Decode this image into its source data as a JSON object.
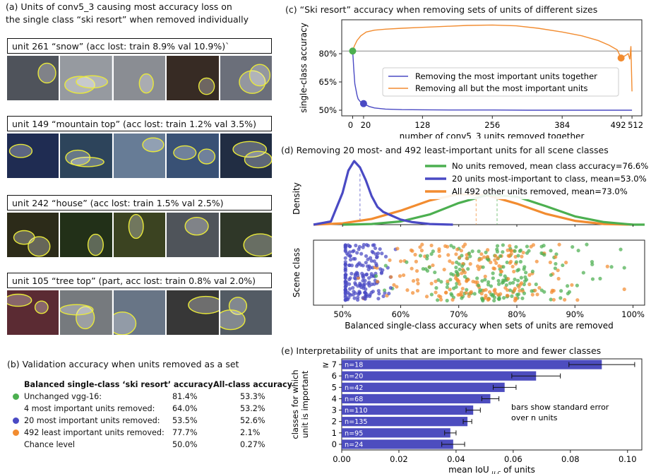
{
  "panel_a": {
    "title_line1": "(a) Units of conv5_3 causing most accuracy loss on",
    "title_line2": "the single class “ski resort” when removed individually",
    "units": [
      {
        "caption": "unit 261 “snow” (acc lost: train 8.9% val 10.9%)`",
        "palette": [
          "#6a6f7a",
          "#c9ced6",
          "#b8bcc4",
          "#4a3a30",
          "#8f95a3"
        ]
      },
      {
        "caption": "unit 149 “mountain top” (acc lost: train 1.2% val 3.5%)",
        "palette": [
          "#2a3b6e",
          "#3c5b7a",
          "#8aa6c8",
          "#4d6d9c",
          "#2c3d5a"
        ]
      },
      {
        "caption": "unit 242 “house” (acc lost: train 1.5% val 2.5%)",
        "palette": [
          "#3b3a22",
          "#2e4020",
          "#4f5a2c",
          "#6a7078",
          "#3f4a36"
        ]
      },
      {
        "caption": "unit 105 “tree top” (part, acc lost: train 0.8% val 2.0%)",
        "palette": [
          "#7a3a44",
          "#9ea3a8",
          "#8b9db3",
          "#4a4a4a",
          "#6f7a86"
        ]
      }
    ]
  },
  "panel_b": {
    "title": "(b) Validation accuracy when units removed as a set",
    "headers": [
      "Balanced single-class ‘ski resort’ accuracy",
      "All-class accuracy"
    ],
    "rows": [
      {
        "label": "Unchanged vgg-16:",
        "acc": "81.4%",
        "all": "53.3%",
        "dot": "#4caf50"
      },
      {
        "label": "4 most important units removed:",
        "acc": "64.0%",
        "all": "53.2%",
        "dot": ""
      },
      {
        "label": "20 most important units removed:",
        "acc": "53.5%",
        "all": "52.6%",
        "dot": "#4a4ac4"
      },
      {
        "label": "492 least important units removed:",
        "acc": "77.7%",
        "all": "2.1%",
        "dot": "#f28c30"
      },
      {
        "label": "Chance level",
        "acc": "50.0%",
        "all": "0.27%",
        "dot": ""
      }
    ]
  },
  "colors": {
    "green": "#4caf50",
    "blue": "#4a4ac4",
    "orange": "#f28c30",
    "bar": "#4d4dbf"
  },
  "chart_data": [
    {
      "id": "c",
      "type": "line",
      "title": "(c) “Ski resort” accuracy when removing sets of units of different sizes",
      "xlabel": "number of conv5_3 units removed together",
      "ylabel": "single-class accuracy",
      "xlim": [
        -20,
        530
      ],
      "ylim": [
        0.47,
        0.98
      ],
      "xticks": [
        0,
        20,
        128,
        256,
        384,
        492,
        512
      ],
      "xtick_labels": [
        "0",
        "20",
        "128",
        "256",
        "384",
        "492",
        "512"
      ],
      "yticks": [
        0.5,
        0.65,
        0.8
      ],
      "ytick_labels": [
        "50%",
        "65%",
        "80%"
      ],
      "hline": 0.814,
      "legend": [
        "Removing the most important units together",
        "Removing all but the most important units"
      ],
      "legend_position": "lower-right",
      "series": [
        {
          "name": "Removing the most important units together",
          "color": "#4a4ac4",
          "x": [
            0,
            1,
            2,
            4,
            6,
            8,
            10,
            14,
            20,
            30,
            40,
            60,
            90,
            128,
            200,
            256,
            320,
            384,
            450,
            512
          ],
          "y": [
            0.814,
            0.77,
            0.72,
            0.64,
            0.61,
            0.58,
            0.56,
            0.545,
            0.535,
            0.52,
            0.512,
            0.506,
            0.503,
            0.502,
            0.501,
            0.501,
            0.5,
            0.5,
            0.5,
            0.5
          ]
        },
        {
          "name": "Removing all but the most important units",
          "color": "#f28c30",
          "x": [
            0,
            3,
            8,
            15,
            25,
            40,
            60,
            90,
            128,
            170,
            210,
            256,
            300,
            340,
            384,
            420,
            450,
            470,
            485,
            492,
            500,
            505,
            508,
            510,
            512
          ],
          "y": [
            0.814,
            0.84,
            0.87,
            0.895,
            0.915,
            0.925,
            0.93,
            0.935,
            0.94,
            0.945,
            0.95,
            0.952,
            0.948,
            0.935,
            0.915,
            0.895,
            0.87,
            0.845,
            0.82,
            0.777,
            0.79,
            0.8,
            0.77,
            0.84,
            0.6
          ]
        }
      ],
      "markers": [
        {
          "x": 0,
          "y": 0.814,
          "color": "#4caf50"
        },
        {
          "x": 20,
          "y": 0.535,
          "color": "#4a4ac4"
        },
        {
          "x": 492,
          "y": 0.777,
          "color": "#f28c30"
        }
      ]
    },
    {
      "id": "d",
      "type": "area",
      "title": "(d) Removing 20 most- and 492 least-important units for all scene classes",
      "ylabel": "Density",
      "xlim": [
        0.45,
        1.02
      ],
      "legend": [
        "No units removed, mean class accuracy=76.6%",
        "20 units most-important to class, mean=53.0%",
        "All 492 other units removed, mean=73.0%"
      ],
      "legend_position": "top-right",
      "series": [
        {
          "name": "No units removed, mean class accuracy=76.6%",
          "color": "#4caf50",
          "mean": 0.766,
          "x": [
            0.5,
            0.55,
            0.6,
            0.65,
            0.7,
            0.75,
            0.8,
            0.85,
            0.9,
            0.95,
            1.0,
            1.02
          ],
          "y": [
            0.0,
            0.01,
            0.05,
            0.16,
            0.34,
            0.47,
            0.44,
            0.29,
            0.13,
            0.04,
            0.0,
            0.0
          ]
        },
        {
          "name": "20 units most-important to class, mean=53.0%",
          "color": "#4a4ac4",
          "mean": 0.53,
          "x": [
            0.45,
            0.48,
            0.5,
            0.51,
            0.52,
            0.53,
            0.54,
            0.55,
            0.56,
            0.57,
            0.58,
            0.6,
            0.62,
            0.65,
            0.69
          ],
          "y": [
            0.0,
            0.05,
            0.5,
            0.85,
            1.0,
            0.9,
            0.7,
            0.45,
            0.28,
            0.2,
            0.16,
            0.08,
            0.04,
            0.01,
            0.0
          ]
        },
        {
          "name": "All 492 other units removed, mean=73.0%",
          "color": "#f28c30",
          "mean": 0.73,
          "x": [
            0.45,
            0.5,
            0.55,
            0.6,
            0.65,
            0.7,
            0.75,
            0.8,
            0.85,
            0.9,
            0.95,
            1.0
          ],
          "y": [
            0.0,
            0.02,
            0.09,
            0.22,
            0.38,
            0.48,
            0.46,
            0.33,
            0.17,
            0.06,
            0.01,
            0.0
          ]
        }
      ]
    },
    {
      "id": "d-scatter",
      "type": "scatter",
      "ylabel": "Scene class",
      "xlabel": "Balanced single-class accuracy when sets of units are removed",
      "xlim": [
        0.45,
        1.02
      ],
      "xticks": [
        0.5,
        0.6,
        0.7,
        0.8,
        0.9,
        1.0
      ],
      "xtick_labels": [
        "50%",
        "60%",
        "70%",
        "80%",
        "90%",
        "100%"
      ],
      "series": [
        {
          "name": "No units removed",
          "color": "#4caf50",
          "mean": 0.766,
          "sd": 0.08,
          "count": 190
        },
        {
          "name": "20 units most-important to class",
          "color": "#4a4ac4",
          "mean": 0.53,
          "sd": 0.025,
          "count": 190
        },
        {
          "name": "All 492 other units removed",
          "color": "#f28c30",
          "mean": 0.73,
          "sd": 0.085,
          "count": 190
        }
      ]
    },
    {
      "id": "e",
      "type": "bar",
      "orientation": "horizontal",
      "title": "(e) Interpretability of units that are important to more and fewer classes",
      "xlabel": "mean IoU",
      "xlabel_subscript": "u,c",
      "xlabel_suffix": " of units",
      "ylabel": "classes for which unit is important",
      "categories": [
        "0",
        "1",
        "2",
        "3",
        "4",
        "5",
        "6",
        "≥ 7"
      ],
      "values": [
        0.039,
        0.038,
        0.044,
        0.046,
        0.052,
        0.057,
        0.068,
        0.091
      ],
      "errors": [
        0.004,
        0.002,
        0.0015,
        0.0025,
        0.003,
        0.004,
        0.0085,
        0.0115
      ],
      "counts": [
        "n=24",
        "n=95",
        "n=135",
        "n=110",
        "n=68",
        "n=42",
        "n=20",
        "n=18"
      ],
      "xlim": [
        0,
        0.105
      ],
      "xticks": [
        0,
        0.02,
        0.04,
        0.06,
        0.08,
        0.1
      ],
      "xtick_labels": [
        "0.00",
        "0.02",
        "0.04",
        "0.06",
        "0.08",
        "0.10"
      ],
      "annotation": "bars show standard error over n units",
      "annotation_line1": "bars show standard error",
      "annotation_line2": "over n units",
      "color": "#4d4dbf"
    }
  ]
}
